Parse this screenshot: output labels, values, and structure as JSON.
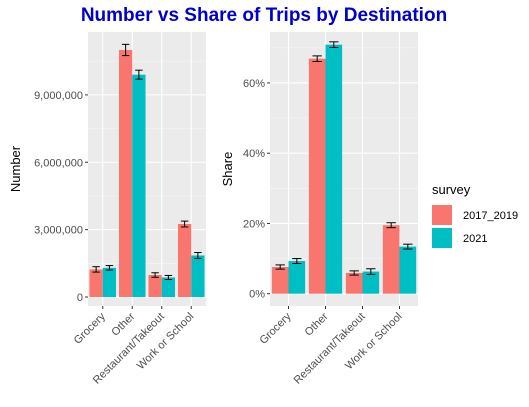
{
  "title": "Number vs Share of Trips by Destination",
  "colors": {
    "title": "#0000cc",
    "panel_bg": "#ebebeb",
    "grid_major": "#ffffff",
    "series_2017_2019": "#f8766d",
    "series_2021": "#00bfc4",
    "error_bar": "#000000"
  },
  "legend": {
    "title": "survey",
    "placement": "right",
    "entries": [
      "2017_2019",
      "2021"
    ]
  },
  "chart_data": [
    {
      "type": "bar",
      "grouped": true,
      "title": "",
      "xlabel": "",
      "ylabel": "Number",
      "categories": [
        "Grocery",
        "Other",
        "Restaurant/Takeout",
        "Work or School"
      ],
      "ylim": [
        -400000,
        11800000
      ],
      "yticks": [
        0,
        3000000,
        6000000,
        9000000
      ],
      "ytick_labels": [
        "0",
        "3,000,000",
        "6,000,000",
        "9,000,000"
      ],
      "grid": true,
      "series": [
        {
          "name": "2017_2019",
          "values": [
            1230000,
            11000000,
            980000,
            3250000
          ],
          "err_low": [
            1110000,
            10750000,
            880000,
            3120000
          ],
          "err_high": [
            1350000,
            11250000,
            1080000,
            3380000
          ]
        },
        {
          "name": "2021",
          "values": [
            1300000,
            9900000,
            870000,
            1850000
          ],
          "err_low": [
            1200000,
            9700000,
            780000,
            1720000
          ],
          "err_high": [
            1400000,
            10100000,
            960000,
            1980000
          ]
        }
      ]
    },
    {
      "type": "bar",
      "grouped": true,
      "title": "",
      "xlabel": "",
      "ylabel": "Share",
      "categories": [
        "Grocery",
        "Other",
        "Restaurant/Takeout",
        "Work or School"
      ],
      "ylim": [
        -3.5,
        74.5
      ],
      "yticks": [
        0,
        20,
        40,
        60
      ],
      "ytick_labels": [
        "0%",
        "20%",
        "40%",
        "60%"
      ],
      "grid": true,
      "series": [
        {
          "name": "2017_2019",
          "values": [
            7.6,
            66.9,
            5.9,
            19.5
          ],
          "err_low": [
            7.0,
            66.1,
            5.3,
            18.8
          ],
          "err_high": [
            8.2,
            67.7,
            6.5,
            20.2
          ]
        },
        {
          "name": "2021",
          "values": [
            9.3,
            70.9,
            6.3,
            13.4
          ],
          "err_low": [
            8.6,
            70.1,
            5.5,
            12.7
          ],
          "err_high": [
            10.0,
            71.7,
            7.1,
            14.1
          ]
        }
      ]
    }
  ]
}
